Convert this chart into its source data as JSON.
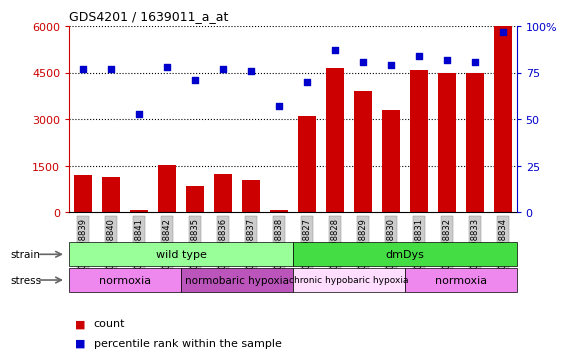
{
  "title": "GDS4201 / 1639011_a_at",
  "samples": [
    "GSM398839",
    "GSM398840",
    "GSM398841",
    "GSM398842",
    "GSM398835",
    "GSM398836",
    "GSM398837",
    "GSM398838",
    "GSM398827",
    "GSM398828",
    "GSM398829",
    "GSM398830",
    "GSM398831",
    "GSM398832",
    "GSM398833",
    "GSM398834"
  ],
  "counts": [
    1200,
    1150,
    80,
    1520,
    850,
    1250,
    1050,
    80,
    3100,
    4650,
    3900,
    3300,
    4600,
    4500,
    4500,
    6000
  ],
  "percentile": [
    77,
    77,
    53,
    78,
    71,
    77,
    76,
    57,
    70,
    87,
    81,
    79,
    84,
    82,
    81,
    97
  ],
  "ylim_left": [
    0,
    6000
  ],
  "ylim_right": [
    0,
    100
  ],
  "yticks_left": [
    0,
    1500,
    3000,
    4500,
    6000
  ],
  "yticks_right": [
    0,
    25,
    50,
    75,
    100
  ],
  "bar_color": "#cc0000",
  "dot_color": "#0000cc",
  "strain_groups": [
    {
      "label": "wild type",
      "start": 0,
      "end": 8,
      "color": "#99ff99"
    },
    {
      "label": "dmDys",
      "start": 8,
      "end": 16,
      "color": "#44dd44"
    }
  ],
  "stress_groups": [
    {
      "label": "normoxia",
      "start": 0,
      "end": 4,
      "color": "#ee88ee"
    },
    {
      "label": "normobaric hypoxia",
      "start": 4,
      "end": 8,
      "color": "#bb55bb"
    },
    {
      "label": "chronic hypobaric hypoxia",
      "start": 8,
      "end": 12,
      "color": "#ffddff"
    },
    {
      "label": "normoxia",
      "start": 12,
      "end": 16,
      "color": "#ee88ee"
    }
  ],
  "background_color": "#ffffff",
  "tick_bg_color": "#cccccc"
}
